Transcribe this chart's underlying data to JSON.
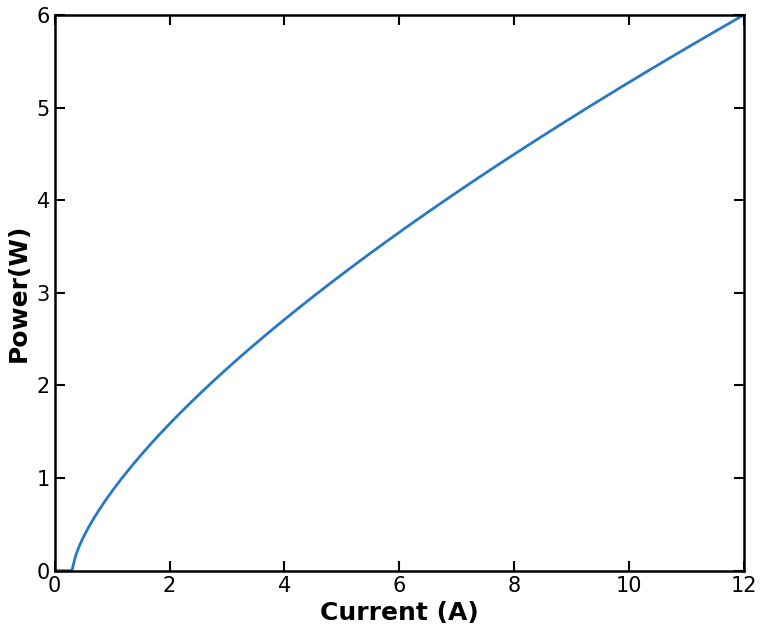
{
  "xlabel": "Current (A)",
  "ylabel": "Power(W)",
  "xlim": [
    0,
    12
  ],
  "ylim": [
    0,
    6
  ],
  "xticks": [
    0,
    2,
    4,
    6,
    8,
    10,
    12
  ],
  "yticks": [
    0,
    1,
    2,
    3,
    4,
    5,
    6
  ],
  "line_color": "#2878c8",
  "line_width": 2.0,
  "threshold_current": 0.3,
  "max_current": 12.0,
  "max_power": 6.0,
  "xlabel_fontsize": 18,
  "ylabel_fontsize": 18,
  "tick_fontsize": 15,
  "background_color": "#ffffff",
  "curve_n": 0.62,
  "curve_scale": 1.85,
  "curve_blend_k": 25
}
